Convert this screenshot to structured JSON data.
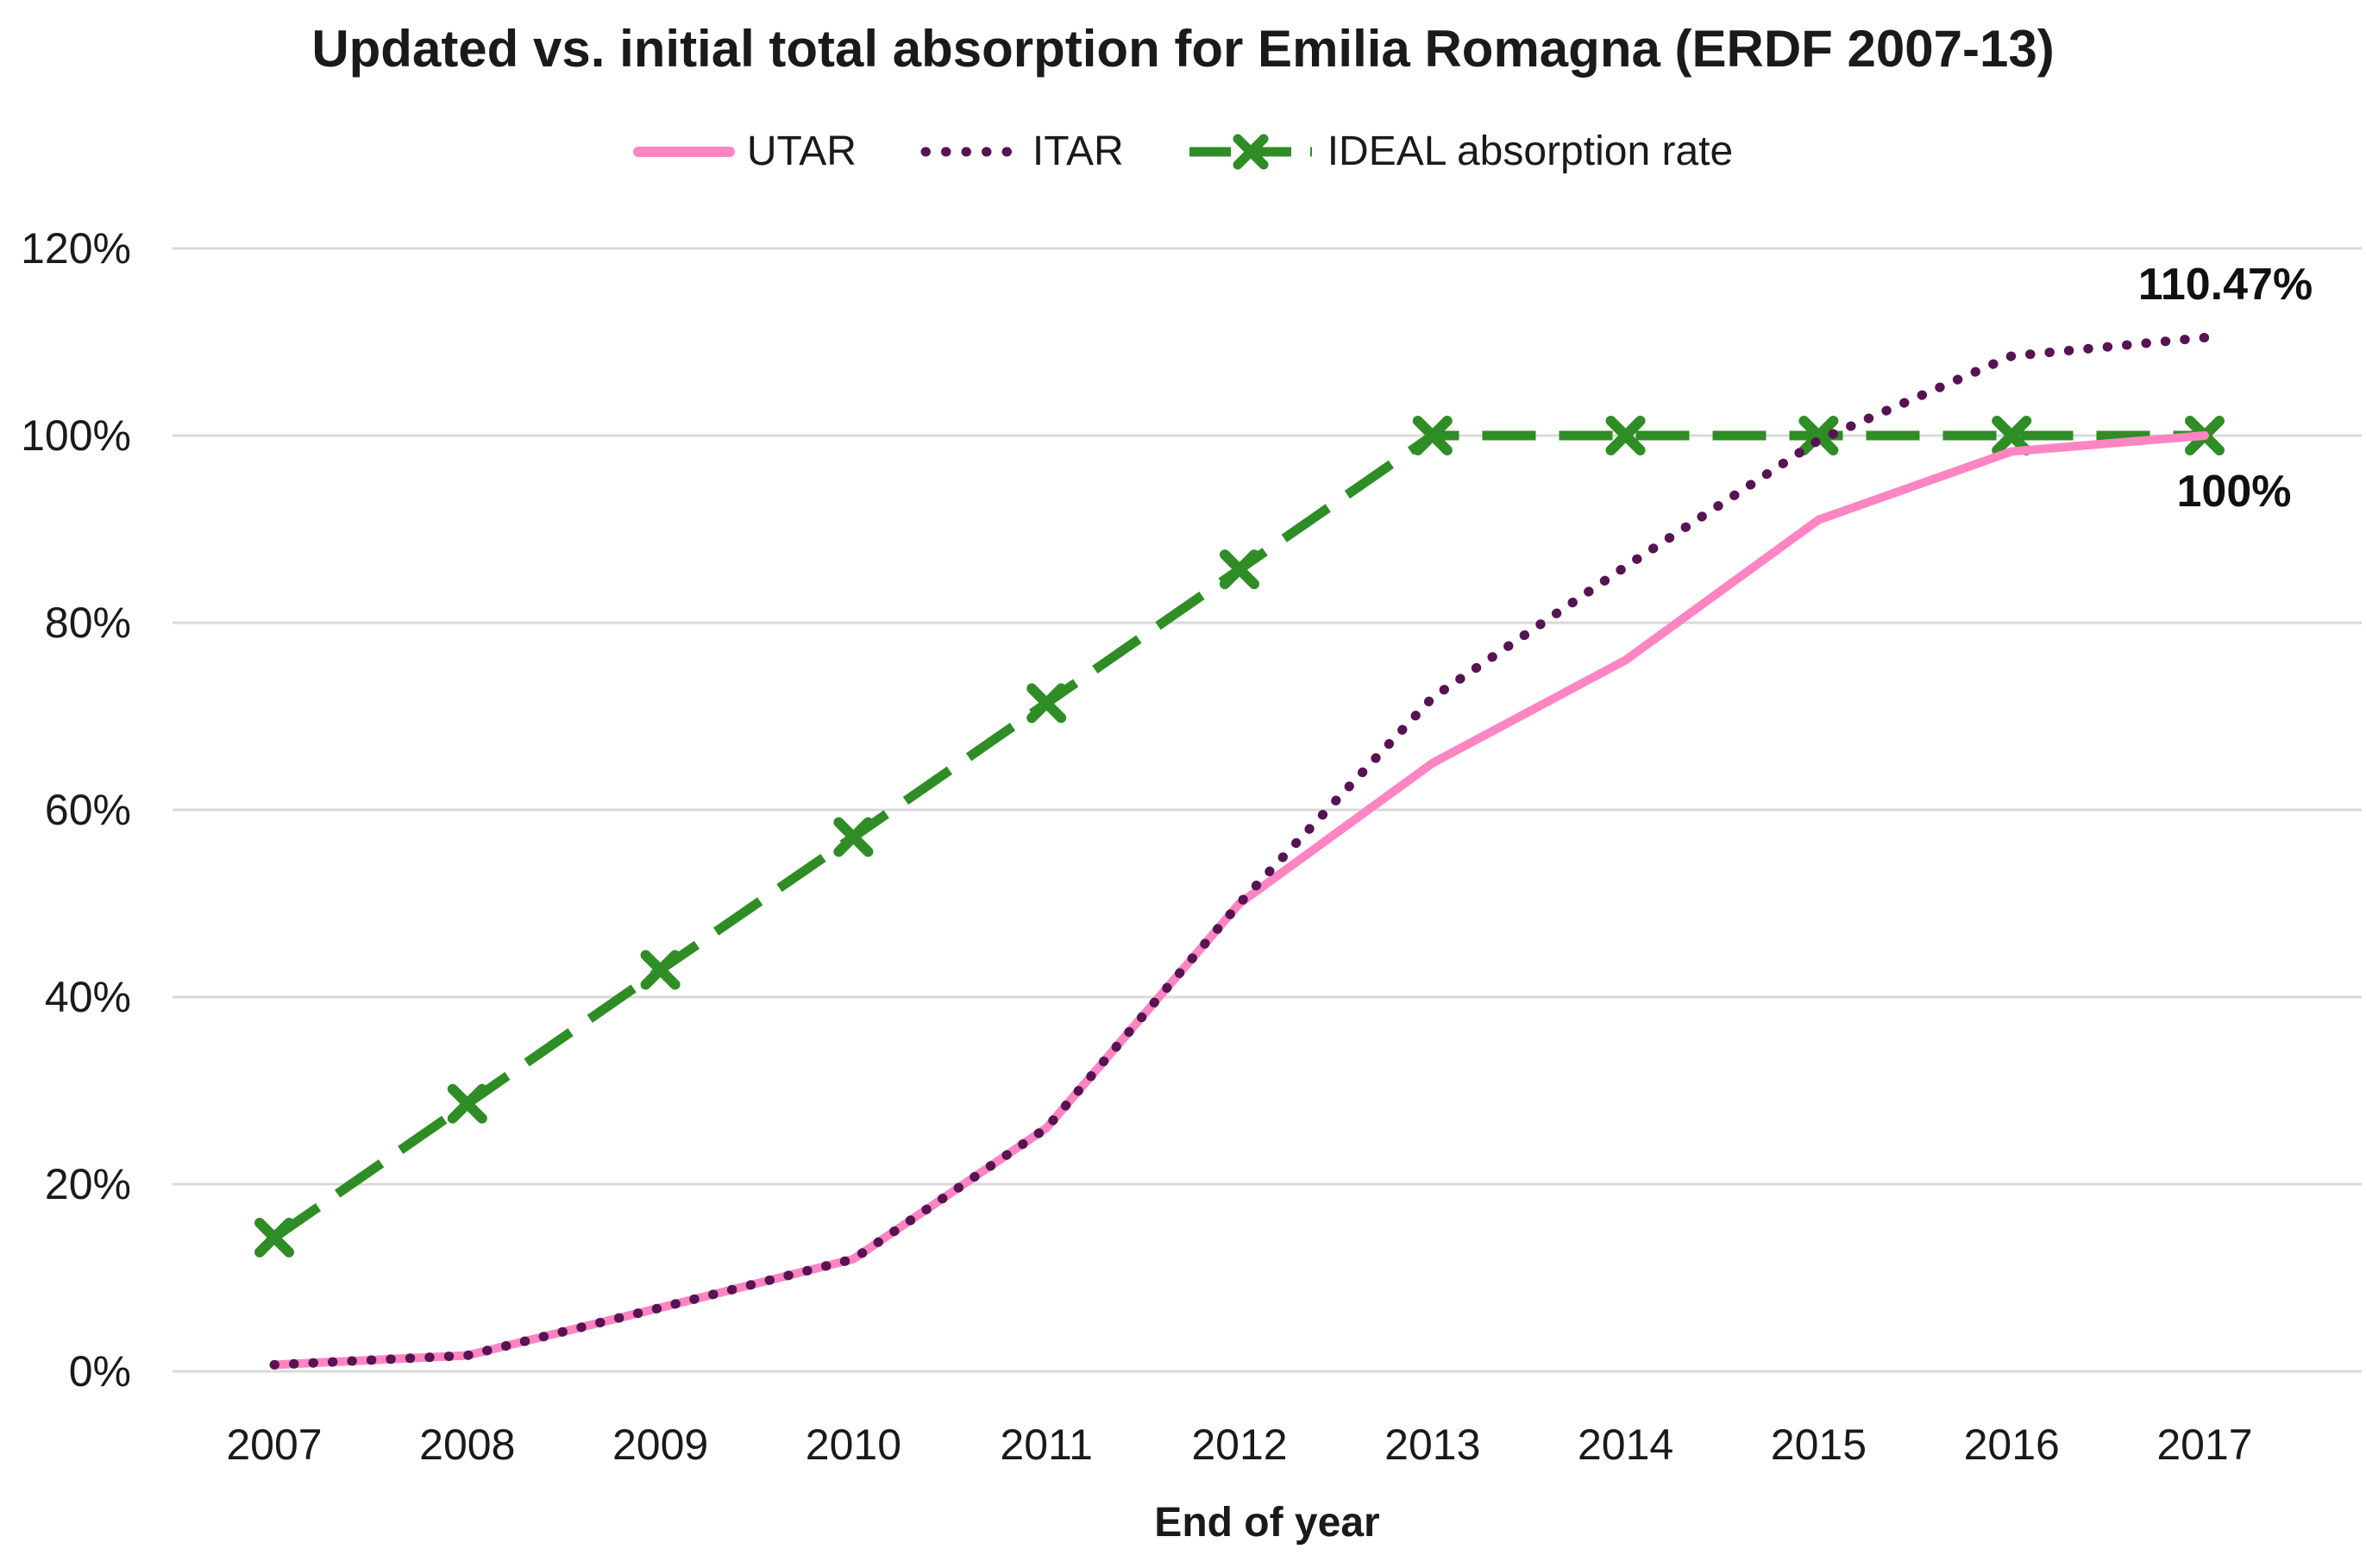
{
  "chart_data": {
    "type": "line",
    "title": "Updated vs. initial total absorption for Emilia Romagna (ERDF 2007-13)",
    "xlabel": "End of year",
    "ylabel": "",
    "x": [
      2007,
      2008,
      2009,
      2010,
      2011,
      2012,
      2013,
      2014,
      2015,
      2016,
      2017
    ],
    "x_tick_labels": [
      "2007",
      "2008",
      "2009",
      "2010",
      "2011",
      "2012",
      "2013",
      "2014",
      "2015",
      "2016",
      "2017"
    ],
    "ylim": [
      0,
      120
    ],
    "y_ticks": [
      0,
      20,
      40,
      60,
      80,
      100,
      120
    ],
    "y_tick_labels": [
      "0%",
      "20%",
      "40%",
      "60%",
      "80%",
      "100%",
      "120%"
    ],
    "grid": "horizontal-only",
    "gridline_color": "#d9d9d9",
    "legend_position": "top-center",
    "series": [
      {
        "name": "UTAR",
        "style": "solid",
        "color": "#FF85C2",
        "values": [
          0.7,
          1.7,
          6.8,
          12,
          26,
          50,
          65,
          76,
          91,
          98.3,
          100
        ]
      },
      {
        "name": "ITAR",
        "style": "dotted",
        "color": "#571353",
        "values": [
          0.7,
          1.7,
          6.8,
          12,
          26,
          50,
          72,
          86,
          99.5,
          108.5,
          110.47
        ]
      },
      {
        "name": "IDEAL absorption rate",
        "style": "dashed-x-marker",
        "color": "#2F8D26",
        "values": [
          14.3,
          28.6,
          42.9,
          57.1,
          71.4,
          85.7,
          100,
          100,
          100,
          100,
          100
        ]
      }
    ],
    "annotations": [
      {
        "text": "110.47%",
        "attached_to": "ITAR",
        "x": 2017,
        "y": 110.47
      },
      {
        "text": "100%",
        "attached_to": "UTAR / IDEAL absorption rate",
        "x": 2017,
        "y": 100
      }
    ]
  }
}
